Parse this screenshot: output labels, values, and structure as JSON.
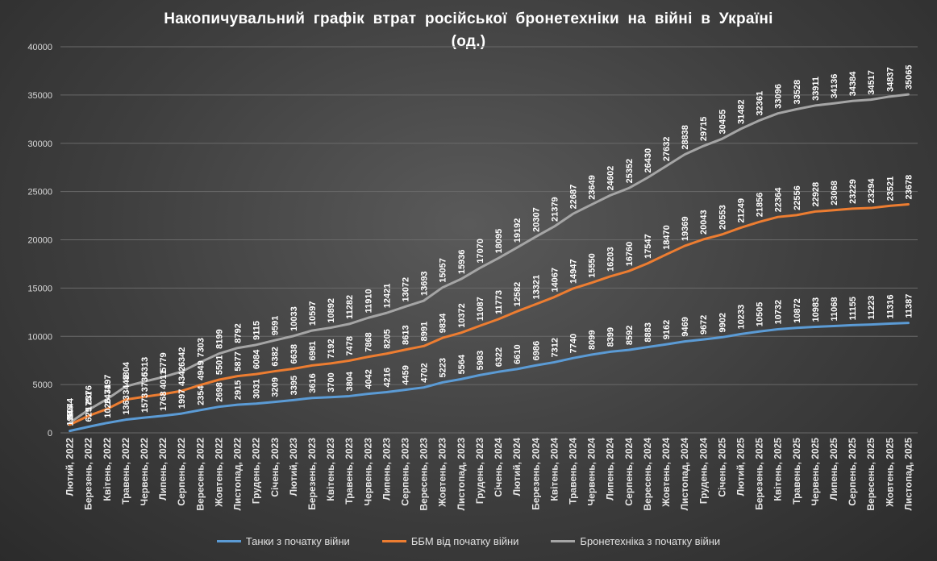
{
  "chart_data": {
    "type": "line",
    "title_lines": [
      "Накопичувальний графік втрат російської бронетехніки на війні в Україні",
      "(од.)"
    ],
    "ylim": [
      0,
      40000
    ],
    "yticks": [
      0,
      5000,
      10000,
      15000,
      20000,
      25000,
      30000,
      35000,
      40000
    ],
    "legend_position": "bottom",
    "grid": true,
    "categories": [
      "Лютий, 2022",
      "Березень, 2022",
      "Квітень, 2022",
      "Травень, 2022",
      "Червень, 2022",
      "Липень, 2022",
      "Серпень, 2022",
      "Вересень, 2022",
      "Жовтень, 2022",
      "Листопад, 2022",
      "Грудень, 2022",
      "Січень, 2023",
      "Лютий, 2023",
      "Березень, 2023",
      "Квітень, 2023",
      "Травень, 2023",
      "Червень, 2023",
      "Липень, 2023",
      "Серпень, 2023",
      "Вересень, 2023",
      "Жовтень, 2023",
      "Листопад, 2023",
      "Грудень, 2023",
      "Січень, 2024",
      "Лютий, 2024",
      "Березень, 2024",
      "Квітень, 2024",
      "Травень, 2024",
      "Червень, 2024",
      "Липень, 2024",
      "Серпень, 2024",
      "Вересень, 2024",
      "Жовтень, 2024",
      "Листопад, 2024",
      "Грудень, 2024",
      "Січень, 2025",
      "Лютий, 2025",
      "Березень, 2025",
      "Квітень, 2025",
      "Травень, 2025",
      "Червень, 2025",
      "Липень, 2025",
      "Серпень, 2025",
      "Вересень, 2025",
      "Жовтень, 2025",
      "Листопад, 2025"
    ],
    "series": [
      {
        "name": "Танки з початку війни",
        "color": "#5b9bd5",
        "values": [
          198,
          625,
          1026,
          1363,
          1573,
          1768,
          1997,
          2354,
          2698,
          2915,
          3031,
          3209,
          3395,
          3616,
          3700,
          3804,
          4042,
          4216,
          4459,
          4702,
          5223,
          5564,
          5983,
          6322,
          6610,
          6986,
          7312,
          7740,
          8099,
          8399,
          8592,
          8883,
          9162,
          9469,
          9672,
          9902,
          10233,
          10505,
          10732,
          10872,
          10983,
          11068,
          11155,
          11223,
          11316,
          11387
        ]
      },
      {
        "name": "ББМ від початку війни",
        "color": "#ed7d31",
        "values": [
          846,
          1751,
          2471,
          3443,
          3736,
          4011,
          4342,
          4949,
          5501,
          5877,
          6084,
          6382,
          6638,
          6981,
          7192,
          7478,
          7868,
          8205,
          8613,
          8991,
          9834,
          10372,
          11087,
          11773,
          12582,
          13321,
          14067,
          14947,
          15550,
          16203,
          16760,
          17547,
          18470,
          19369,
          20043,
          20553,
          21249,
          21856,
          22364,
          22556,
          22928,
          23068,
          23229,
          23294,
          23521,
          23678
        ]
      },
      {
        "name": "Бронетехніка з початку війни",
        "color": "#a5a5a5",
        "values": [
          1044,
          2376,
          3497,
          4804,
          5313,
          5779,
          6342,
          7303,
          8199,
          8792,
          9115,
          9591,
          10033,
          10597,
          10892,
          11282,
          11910,
          12421,
          13072,
          13693,
          15057,
          15936,
          17070,
          18095,
          19192,
          20307,
          21379,
          22687,
          23649,
          24602,
          25352,
          26430,
          27632,
          28838,
          29715,
          30455,
          31482,
          32361,
          33096,
          33528,
          33911,
          34136,
          34384,
          34517,
          34837,
          35065
        ]
      }
    ]
  }
}
